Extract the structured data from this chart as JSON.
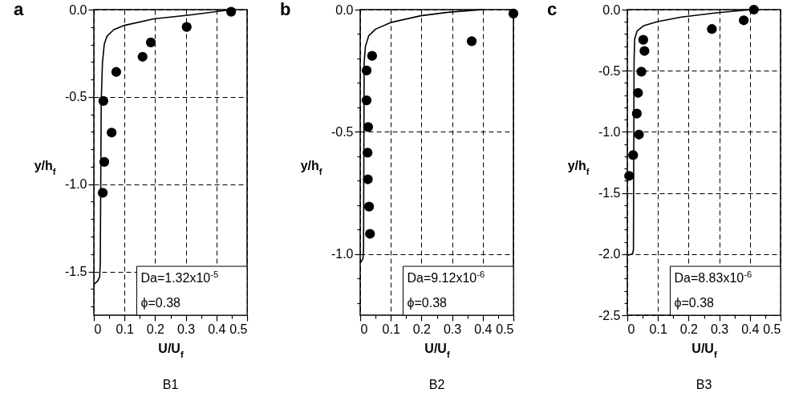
{
  "chart_data": [
    {
      "type": "scatter",
      "title": "a",
      "xlabel": "U/U$_{f}$",
      "ylabel": "y/h$_{f}$",
      "xlim": [
        0,
        0.5
      ],
      "ylim": [
        -1.75,
        0
      ],
      "xticks": [
        0,
        {
          "value": 0.05,
          "label": null
        },
        0.1,
        {
          "value": 0.15,
          "label": null
        },
        0.2,
        {
          "value": 0.25,
          "label": null
        },
        0.3,
        {
          "value": 0.35,
          "label": null
        },
        0.4,
        {
          "value": 0.45,
          "label": null
        },
        0.5
      ],
      "yticks": [
        {
          "value": 0,
          "label": "0.0"
        },
        {
          "value": -0.1,
          "label": null
        },
        {
          "value": -0.2,
          "label": null
        },
        {
          "value": -0.3,
          "label": null
        },
        {
          "value": -0.4,
          "label": null
        },
        -0.5,
        {
          "value": -0.6,
          "label": null
        },
        {
          "value": -0.7,
          "label": null
        },
        {
          "value": -0.8,
          "label": null
        },
        {
          "value": -0.9,
          "label": null
        },
        {
          "value": -1,
          "label": "-1.0"
        },
        {
          "value": -1.1,
          "label": null
        },
        {
          "value": -1.2,
          "label": null
        },
        {
          "value": -1.3,
          "label": null
        },
        {
          "value": -1.4,
          "label": null
        },
        -1.5,
        {
          "value": -1.6,
          "label": null
        },
        {
          "value": -1.7,
          "label": null
        }
      ],
      "grid": true,
      "line_style": "solid",
      "annotations": [
        "Da=1.32x10$^{-5}$",
        "ϕ=0.38",
        "B1"
      ],
      "series": [
        {
          "type": "line",
          "color": "#000000",
          "x": [
            0.45,
            0.318,
            0.196,
            0.1,
            0.065,
            0.043,
            0.034,
            0.028,
            0.024,
            0.021,
            0.019,
            0.012,
            0.002
          ],
          "values": [
            0,
            -0.03,
            -0.053,
            -0.09,
            -0.115,
            -0.152,
            -0.198,
            -0.305,
            -0.534,
            -1.45,
            -1.53,
            -1.555,
            -1.57
          ]
        },
        {
          "marker": "circle",
          "color": "#000000",
          "x": [
            0.448,
            0.303,
            0.186,
            0.159,
            0.073,
            0.031,
            0.058,
            0.034,
            0.029
          ],
          "values": [
            -0.012,
            -0.099,
            -0.188,
            -0.27,
            -0.357,
            -0.523,
            -0.704,
            -0.872,
            -1.049
          ]
        }
      ]
    },
    {
      "type": "scatter",
      "title": "b",
      "xlabel": "U/U$_{f}$",
      "ylabel": "y/h$_{f}$",
      "xlim": [
        0,
        0.5
      ],
      "ylim": [
        -1.25,
        0
      ],
      "xticks": [
        0,
        {
          "value": 0.05,
          "label": null
        },
        0.1,
        {
          "value": 0.15,
          "label": null
        },
        0.2,
        {
          "value": 0.25,
          "label": null
        },
        0.3,
        {
          "value": 0.35,
          "label": null
        },
        0.4,
        {
          "value": 0.45,
          "label": null
        },
        0.5
      ],
      "yticks": [
        {
          "value": 0,
          "label": "0.0"
        },
        {
          "value": -0.1,
          "label": null
        },
        {
          "value": -0.2,
          "label": null
        },
        {
          "value": -0.3,
          "label": null
        },
        {
          "value": -0.4,
          "label": null
        },
        -0.5,
        {
          "value": -0.6,
          "label": null
        },
        {
          "value": -0.7,
          "label": null
        },
        {
          "value": -0.8,
          "label": null
        },
        {
          "value": -0.9,
          "label": null
        },
        {
          "value": -1,
          "label": "-1.0"
        },
        {
          "value": -1.1,
          "label": null
        },
        {
          "value": -1.2,
          "label": null
        }
      ],
      "grid": true,
      "line_style": "solid",
      "annotations": [
        "Da=9.12x10$^{-6}$",
        "ϕ=0.38",
        "B2"
      ],
      "series": [
        {
          "type": "line",
          "color": "#000000",
          "x": [
            0.4,
            0.285,
            0.198,
            0.102,
            0.05,
            0.028,
            0.017,
            0.013,
            0.011,
            0.009,
            0.001
          ],
          "values": [
            0,
            -0.011,
            -0.025,
            -0.052,
            -0.08,
            -0.107,
            -0.151,
            -0.216,
            -0.981,
            -1.019,
            -1.035
          ]
        },
        {
          "marker": "circle",
          "color": "#000000",
          "x": [
            0.5,
            0.364,
            0.039,
            0.021,
            0.021,
            0.026,
            0.024,
            0.025,
            0.029,
            0.032
          ],
          "values": [
            -0.016,
            -0.129,
            -0.189,
            -0.249,
            -0.371,
            -0.48,
            -0.585,
            -0.694,
            -0.806,
            -0.917
          ]
        }
      ]
    },
    {
      "type": "scatter",
      "title": "c",
      "xlabel": "U/U$_{f}$",
      "ylabel": "y/h$_{f}$",
      "xlim": [
        0,
        0.5
      ],
      "ylim": [
        -2.5,
        0
      ],
      "xticks": [
        0,
        {
          "value": 0.05,
          "label": null
        },
        0.1,
        {
          "value": 0.15,
          "label": null
        },
        0.2,
        {
          "value": 0.25,
          "label": null
        },
        0.3,
        {
          "value": 0.35,
          "label": null
        },
        0.4,
        {
          "value": 0.45,
          "label": null
        },
        0.5
      ],
      "yticks": [
        {
          "value": 0,
          "label": "0.0"
        },
        {
          "value": -0.1,
          "label": null
        },
        {
          "value": -0.2,
          "label": null
        },
        {
          "value": -0.3,
          "label": null
        },
        {
          "value": -0.4,
          "label": null
        },
        -0.5,
        {
          "value": -0.6,
          "label": null
        },
        {
          "value": -0.7,
          "label": null
        },
        {
          "value": -0.8,
          "label": null
        },
        {
          "value": -0.9,
          "label": null
        },
        {
          "value": -1,
          "label": "-1.0"
        },
        {
          "value": -1.1,
          "label": null
        },
        {
          "value": -1.2,
          "label": null
        },
        {
          "value": -1.3,
          "label": null
        },
        {
          "value": -1.4,
          "label": null
        },
        -1.5,
        {
          "value": -1.6,
          "label": null
        },
        {
          "value": -1.7,
          "label": null
        },
        {
          "value": -1.8,
          "label": null
        },
        {
          "value": -1.9,
          "label": null
        },
        {
          "value": -2,
          "label": "-2.0"
        },
        {
          "value": -2.1,
          "label": null
        },
        {
          "value": -2.2,
          "label": null
        },
        {
          "value": -2.3,
          "label": null
        },
        {
          "value": -2.4,
          "label": null
        },
        -2.5
      ],
      "grid": true,
      "line_style": "solid",
      "annotations": [
        "Da=8.83x10$^{-6}$",
        "ϕ=0.38",
        "B3"
      ],
      "series": [
        {
          "type": "line",
          "color": "#000000",
          "x": [
            0.404,
            0.29,
            0.177,
            0.098,
            0.054,
            0.032,
            0.024,
            0.022,
            0.02,
            0.017,
            0.002
          ],
          "values": [
            0,
            -0.026,
            -0.061,
            -0.098,
            -0.131,
            -0.175,
            -0.24,
            -0.437,
            -1.965,
            -1.998,
            -2.009
          ]
        },
        {
          "marker": "circle",
          "color": "#000000",
          "x": [
            0.413,
            0.38,
            0.276,
            0.052,
            0.056,
            0.046,
            0.035,
            0.031,
            0.038,
            0.019,
            0.006
          ],
          "values": [
            0,
            -0.087,
            -0.159,
            -0.247,
            -0.338,
            -0.508,
            -0.681,
            -0.851,
            -1.022,
            -1.19,
            -1.36
          ]
        }
      ]
    }
  ]
}
